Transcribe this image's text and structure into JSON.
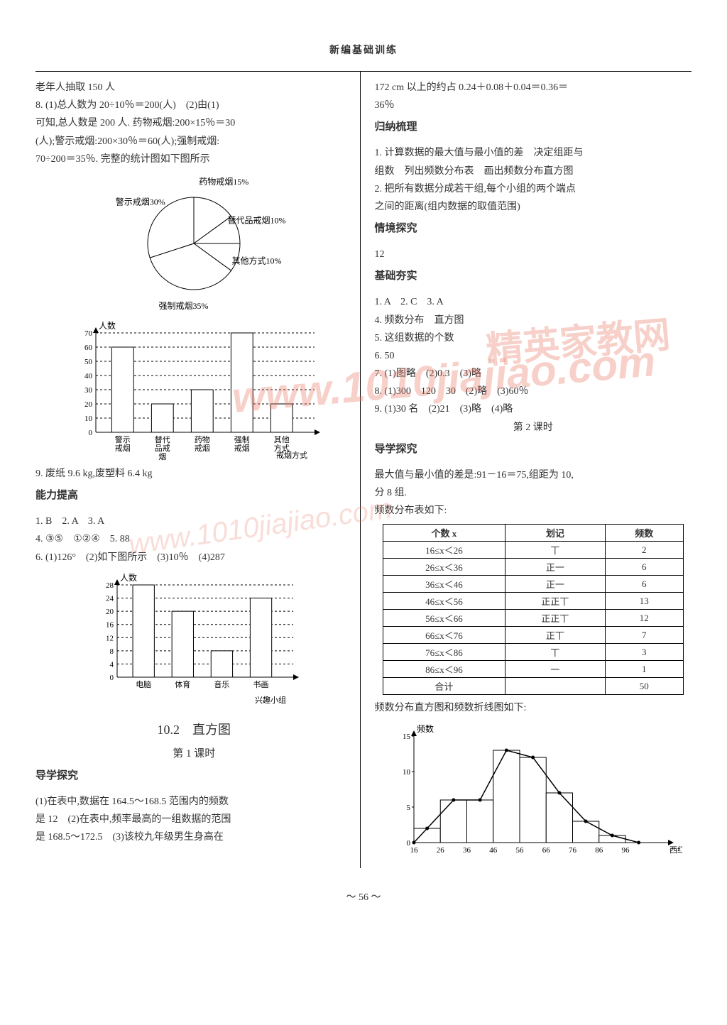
{
  "header": {
    "title": "新编基础训练"
  },
  "left": {
    "l1": "老年人抽取 150 人",
    "l2": "8. (1)总人数为 20÷10％＝200(人)　(2)由(1)",
    "l3": "可知,总人数是 200 人. 药物戒烟:200×15％＝30",
    "l4": "(人);警示戒烟:200×30％＝60(人);强制戒烟:",
    "l5": "70÷200＝35％. 完整的统计图如下图所示",
    "pie": {
      "slices": [
        {
          "label": "药物戒烟15%",
          "pct": 15,
          "color": "#ffffff"
        },
        {
          "label": "替代品戒烟10%",
          "pct": 10,
          "color": "#ffffff"
        },
        {
          "label": "其他方式10%",
          "pct": 10,
          "color": "#ffffff"
        },
        {
          "label": "强制戒烟35%",
          "pct": 35,
          "color": "#ffffff"
        },
        {
          "label": "警示戒烟30%",
          "pct": 30,
          "color": "#ffffff"
        }
      ],
      "outline": "#000000"
    },
    "bar1": {
      "ylabel": "人数",
      "ymax": 70,
      "ytick": 10,
      "categories": [
        "警示戒烟",
        "替代品戒烟",
        "药物戒烟",
        "强制戒烟",
        "其他方式"
      ],
      "values": [
        60,
        20,
        30,
        70,
        20
      ],
      "xlabel": "戒烟方式",
      "bar_color": "#ffffff",
      "outline": "#000000",
      "grid": "#000000"
    },
    "l6": "9. 废纸 9.6 kg,废塑料 6.4 kg",
    "sec1": "能力提高",
    "l7": "1. B　2. A　3. A",
    "l8": "4. ③⑤　①②④　5. 88",
    "l9": "6. (1)126°　(2)如下图所示　(3)10％　(4)287",
    "bar2": {
      "ylabel": "人数",
      "ymax": 28,
      "ytick": 4,
      "ystart": 4,
      "categories": [
        "电脑",
        "体育",
        "音乐",
        "书画"
      ],
      "values": [
        28,
        20,
        8,
        24
      ],
      "xlabel": "兴趣小组",
      "bar_color": "#ffffff",
      "outline": "#000000",
      "grid": "#000000"
    },
    "title2": "10.2　直方图",
    "sub2": "第 1 课时",
    "sec2": "导学探究",
    "l10": "(1)在表中,数据在 164.5～168.5 范围内的频数",
    "l11": "是 12　(2)在表中,频率最高的一组数据的范围",
    "l12": "是 168.5～172.5　(3)该校九年级男生身高在"
  },
  "right": {
    "r1": "172 cm 以上的约占 0.24＋0.08＋0.04＝0.36＝",
    "r2": "36％",
    "sec1": "归纳梳理",
    "r3": "1. 计算数据的最大值与最小值的差　决定组距与",
    "r4": "组数　列出频数分布表　画出频数分布直方图",
    "r5": "2. 把所有数据分成若干组,每个小组的两个端点",
    "r6": "之间的距离(组内数据的取值范围)",
    "sec2": "情境探究",
    "r7": "12",
    "sec3": "基础夯实",
    "r8": "1. A　2. C　3. A",
    "r9": "4. 频数分布　直方图",
    "r10": "5. 这组数据的个数",
    "r11": "6. 50",
    "r12": "7. (1)图略　(2)0.3　(3)略",
    "r13": "8. (1)300　120　30　(2)略　(3)60％",
    "r14": "9. (1)30 名　(2)21　(3)略　(4)略",
    "r14b": "第 2 课时",
    "sec4": "导学探究",
    "r15": "最大值与最小值的差是:91－16＝75,组距为 10,",
    "r16": "分 8 组.",
    "r17": "频数分布表如下:",
    "table": {
      "headers": [
        "个数 x",
        "划记",
        "频数"
      ],
      "rows": [
        [
          "16≤x＜26",
          "丅",
          "2"
        ],
        [
          "26≤x＜36",
          "正一",
          "6"
        ],
        [
          "36≤x＜46",
          "正一",
          "6"
        ],
        [
          "46≤x＜56",
          "正正丅",
          "13"
        ],
        [
          "56≤x＜66",
          "正正丅",
          "12"
        ],
        [
          "66≤x＜76",
          "正丅",
          "7"
        ],
        [
          "76≤x＜86",
          "丅",
          "3"
        ],
        [
          "86≤x＜96",
          "一",
          "1"
        ],
        [
          "合计",
          "",
          "50"
        ]
      ]
    },
    "r18": "频数分布直方图和频数折线图如下:",
    "histo": {
      "ylabel": "频数",
      "ymax": 15,
      "ytick": 5,
      "xticks": [
        "16",
        "26",
        "36",
        "46",
        "56",
        "66",
        "76",
        "86",
        "96"
      ],
      "xlabel": "西红柿个数",
      "values": [
        2,
        6,
        6,
        13,
        12,
        7,
        3,
        1
      ],
      "bar_color": "#ffffff",
      "outline": "#000000",
      "line_color": "#000000"
    }
  },
  "pageNum": "～ 56 ～",
  "watermark_url": "www.1010jiajiao.com",
  "watermark_cn": "精英家教网"
}
